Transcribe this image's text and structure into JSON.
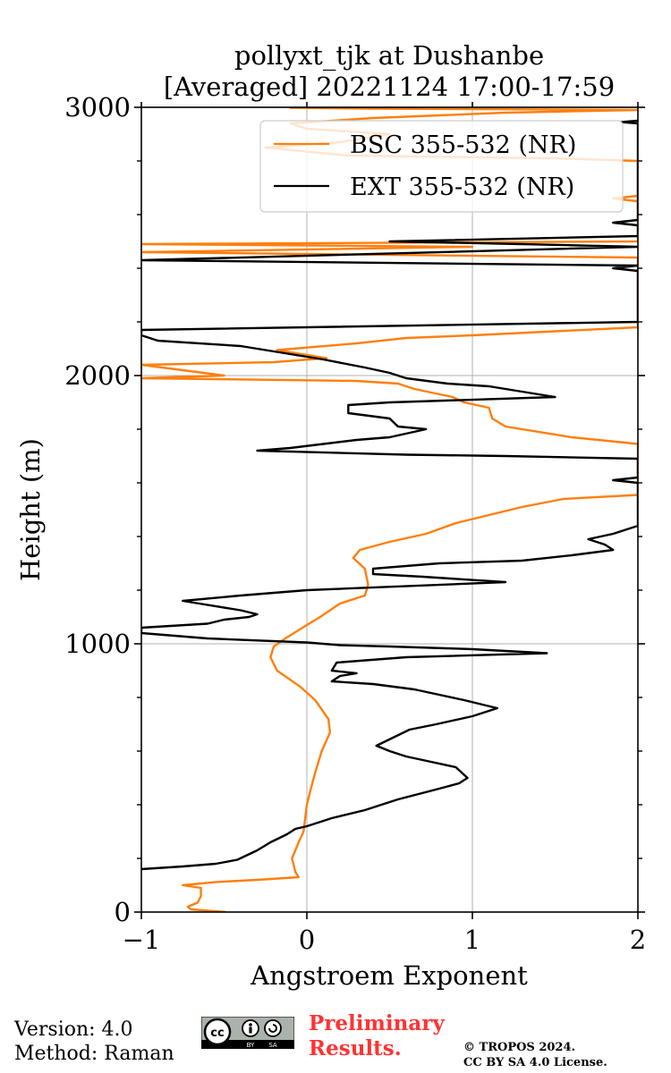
{
  "chart_data": {
    "type": "line",
    "title_line1": "pollyxt_tjk at Dushanbe",
    "title_line2": "[Averaged] 20221124 17:00-17:59",
    "xlabel": "Angstroem Exponent",
    "ylabel": "Height (m)",
    "xlim": [
      -1,
      2
    ],
    "ylim": [
      0,
      3000
    ],
    "x_ticks": [
      -1,
      0,
      1,
      2
    ],
    "x_tick_labels": [
      "−1",
      "0",
      "1",
      "2"
    ],
    "y_ticks": [
      0,
      1000,
      2000,
      3000
    ],
    "y_tick_labels": [
      "0",
      "1000",
      "2000",
      "3000"
    ],
    "y_minor_step": 200,
    "grid": true,
    "legend_position": "top-right",
    "series": [
      {
        "name": "BSC 355-532 (NR)",
        "color": "#ff7f0e",
        "points": [
          [
            -0.49,
            0
          ],
          [
            -0.7,
            10
          ],
          [
            -0.72,
            20
          ],
          [
            -0.66,
            35
          ],
          [
            -0.64,
            60
          ],
          [
            -0.64,
            90
          ],
          [
            -0.75,
            100
          ],
          [
            -0.55,
            112
          ],
          [
            -0.3,
            120
          ],
          [
            -0.05,
            130
          ],
          [
            -0.07,
            150
          ],
          [
            -0.09,
            200
          ],
          [
            -0.05,
            260
          ],
          [
            -0.02,
            300
          ],
          [
            -0.01,
            350
          ],
          [
            0.0,
            400
          ],
          [
            0.02,
            450
          ],
          [
            0.05,
            520
          ],
          [
            0.09,
            600
          ],
          [
            0.14,
            670
          ],
          [
            0.13,
            720
          ],
          [
            0.05,
            790
          ],
          [
            -0.04,
            840
          ],
          [
            -0.18,
            900
          ],
          [
            -0.22,
            950
          ],
          [
            -0.2,
            990
          ],
          [
            -0.13,
            1020
          ],
          [
            0.0,
            1070
          ],
          [
            0.08,
            1100
          ],
          [
            0.2,
            1150
          ],
          [
            0.35,
            1180
          ],
          [
            0.37,
            1220
          ],
          [
            0.35,
            1280
          ],
          [
            0.28,
            1320
          ],
          [
            0.32,
            1350
          ],
          [
            0.5,
            1380
          ],
          [
            0.72,
            1410
          ],
          [
            0.9,
            1450
          ],
          [
            1.1,
            1480
          ],
          [
            1.3,
            1510
          ],
          [
            1.55,
            1540
          ],
          [
            2.0,
            1555
          ],
          [
            2.0,
            1745
          ],
          [
            1.6,
            1770
          ],
          [
            1.2,
            1810
          ],
          [
            1.12,
            1840
          ],
          [
            1.1,
            1880
          ],
          [
            0.95,
            1900
          ],
          [
            0.88,
            1920
          ],
          [
            0.65,
            1950
          ],
          [
            0.55,
            1970
          ],
          [
            0.3,
            1980
          ],
          [
            -1.0,
            1990
          ],
          [
            -0.5,
            2000
          ],
          [
            -1.0,
            2040
          ],
          [
            -0.2,
            2050
          ],
          [
            0.12,
            2065
          ],
          [
            -0.18,
            2095
          ],
          [
            0.3,
            2120
          ],
          [
            0.6,
            2140
          ],
          [
            1.0,
            2150
          ],
          [
            2.0,
            2180
          ],
          [
            2.0,
            2440
          ],
          [
            -1.0,
            2460
          ],
          [
            1.0,
            2480
          ],
          [
            -1.0,
            2490
          ],
          [
            2.0,
            2500
          ],
          [
            2.0,
            2650
          ],
          [
            1.85,
            2660
          ],
          [
            2.0,
            2670
          ],
          [
            2.0,
            2800
          ],
          [
            1.5,
            2810
          ],
          [
            0.25,
            2820
          ],
          [
            -0.25,
            2850
          ],
          [
            0.2,
            2870
          ],
          [
            0.35,
            2885
          ],
          [
            0.5,
            2900
          ],
          [
            0.0,
            2920
          ],
          [
            -0.1,
            2940
          ],
          [
            0.4,
            2960
          ],
          [
            0.8,
            2970
          ],
          [
            1.2,
            2980
          ],
          [
            2.0,
            2990
          ],
          [
            0.4,
            2995
          ],
          [
            -0.1,
            2998
          ],
          [
            0.3,
            2999
          ],
          [
            0.7,
            3000
          ]
        ]
      },
      {
        "name": "EXT 355-532 (NR)",
        "color": "#000000",
        "points": [
          [
            -1.0,
            160
          ],
          [
            -0.75,
            170
          ],
          [
            -0.55,
            180
          ],
          [
            -0.42,
            195
          ],
          [
            -0.3,
            230
          ],
          [
            -0.22,
            260
          ],
          [
            -0.12,
            290
          ],
          [
            -0.07,
            310
          ],
          [
            0.0,
            320
          ],
          [
            0.05,
            330
          ],
          [
            0.15,
            350
          ],
          [
            0.35,
            380
          ],
          [
            0.55,
            420
          ],
          [
            0.8,
            460
          ],
          [
            0.92,
            480
          ],
          [
            0.97,
            500
          ],
          [
            0.9,
            540
          ],
          [
            0.75,
            560
          ],
          [
            0.6,
            580
          ],
          [
            0.5,
            600
          ],
          [
            0.42,
            620
          ],
          [
            0.52,
            650
          ],
          [
            0.62,
            680
          ],
          [
            0.78,
            700
          ],
          [
            1.0,
            730
          ],
          [
            1.15,
            760
          ],
          [
            0.95,
            790
          ],
          [
            0.8,
            810
          ],
          [
            0.65,
            830
          ],
          [
            0.4,
            850
          ],
          [
            0.15,
            860
          ],
          [
            0.2,
            880
          ],
          [
            0.3,
            890
          ],
          [
            0.15,
            900
          ],
          [
            0.18,
            930
          ],
          [
            0.6,
            950
          ],
          [
            1.45,
            965
          ],
          [
            1.0,
            980
          ],
          [
            0.5,
            990
          ],
          [
            0.2,
            995
          ],
          [
            0.0,
            1005
          ],
          [
            -0.6,
            1020
          ],
          [
            -1.0,
            1040
          ],
          [
            -1.0,
            1060
          ],
          [
            -0.6,
            1075
          ],
          [
            -0.5,
            1090
          ],
          [
            -0.35,
            1100
          ],
          [
            -0.3,
            1110
          ],
          [
            -0.4,
            1125
          ],
          [
            -0.65,
            1150
          ],
          [
            -0.75,
            1160
          ],
          [
            -0.4,
            1180
          ],
          [
            0.0,
            1200
          ],
          [
            1.2,
            1230
          ],
          [
            0.7,
            1250
          ],
          [
            0.4,
            1260
          ],
          [
            0.4,
            1280
          ],
          [
            0.8,
            1300
          ],
          [
            1.3,
            1310
          ],
          [
            1.6,
            1330
          ],
          [
            1.85,
            1350
          ],
          [
            1.8,
            1370
          ],
          [
            1.7,
            1390
          ],
          [
            1.85,
            1410
          ],
          [
            2.0,
            1440
          ],
          [
            2.0,
            1600
          ],
          [
            1.85,
            1610
          ],
          [
            2.0,
            1620
          ],
          [
            2.0,
            1690
          ],
          [
            1.2,
            1700
          ],
          [
            0.6,
            1705
          ],
          [
            -0.3,
            1720
          ],
          [
            -0.1,
            1730
          ],
          [
            0.3,
            1760
          ],
          [
            0.5,
            1770
          ],
          [
            0.72,
            1800
          ],
          [
            0.55,
            1810
          ],
          [
            0.5,
            1840
          ],
          [
            0.25,
            1860
          ],
          [
            0.25,
            1890
          ],
          [
            0.5,
            1900
          ],
          [
            1.5,
            1920
          ],
          [
            1.3,
            1940
          ],
          [
            1.1,
            1960
          ],
          [
            0.85,
            1970
          ],
          [
            0.6,
            1990
          ],
          [
            0.5,
            2010
          ],
          [
            0.35,
            2030
          ],
          [
            0.1,
            2060
          ],
          [
            0.0,
            2070
          ],
          [
            -0.4,
            2110
          ],
          [
            -0.9,
            2130
          ],
          [
            -1.0,
            2150
          ],
          [
            -1.0,
            2170
          ],
          [
            2.0,
            2200
          ],
          [
            2.0,
            2390
          ],
          [
            1.85,
            2400
          ],
          [
            2.0,
            2410
          ],
          [
            -1.0,
            2430
          ],
          [
            2.0,
            2480
          ],
          [
            1.3,
            2490
          ],
          [
            0.5,
            2500
          ],
          [
            2.0,
            2520
          ],
          [
            2.0,
            2560
          ],
          [
            1.85,
            2570
          ],
          [
            2.0,
            2580
          ],
          [
            2.0,
            2940
          ],
          [
            1.9,
            2945
          ],
          [
            2.0,
            2950
          ]
        ]
      }
    ]
  },
  "footer": {
    "version": "Version: 4.0",
    "method": "Method: Raman",
    "preliminary_line1": "Preliminary",
    "preliminary_line2": "Results.",
    "copyright_line1": "© TROPOS 2024.",
    "copyright_line2": "CC BY SA 4.0 License.",
    "license_badge": {
      "cc": "cc",
      "by": "BY",
      "sa": "SA"
    }
  }
}
